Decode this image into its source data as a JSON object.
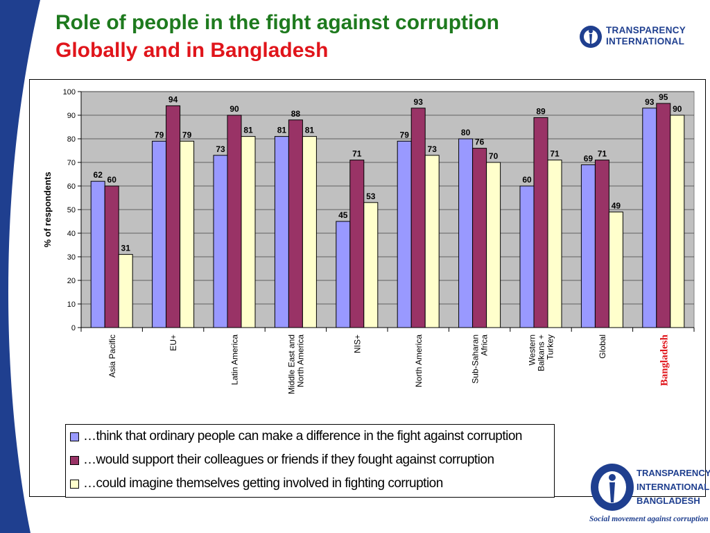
{
  "slide": {
    "title_line1": "Role of people in the fight against corruption",
    "title_line2": "Globally and in Bangladesh"
  },
  "logos": {
    "ti": [
      "TRANSPARENCY",
      "INTERNATIONAL"
    ],
    "tib": [
      "TRANSPARENCY",
      "INTERNATIONAL",
      "BANGLADESH"
    ],
    "tib_tagline": "Social movement against corruption"
  },
  "colors": {
    "series": [
      "#9999ff",
      "#993366",
      "#ffffcc"
    ],
    "plot_bg": "#c0c0c0",
    "title_green": "#1e7a1e",
    "title_red": "#e0151b",
    "highlight": "#e0151b"
  },
  "chart_data": {
    "type": "bar",
    "title": "",
    "ylabel": "% of respondents",
    "xlabel": "",
    "ylim": [
      0,
      100
    ],
    "yticks": [
      0,
      10,
      20,
      30,
      40,
      50,
      60,
      70,
      80,
      90,
      100
    ],
    "grid": true,
    "legend_position": "bottom",
    "categories": [
      "Asia Pacific",
      "EU+",
      "Latin America",
      "Middle East and North America",
      "NIS+",
      "North America",
      "Sub-Saharan Africa",
      "Western Balkans + Turkey",
      "Global",
      "Bangladesh"
    ],
    "category_label_lines": [
      [
        "Asia Pacific"
      ],
      [
        "EU+"
      ],
      [
        "Latin America"
      ],
      [
        "Middle East and",
        "North America"
      ],
      [
        "NIS+"
      ],
      [
        "North America"
      ],
      [
        "Sub-Saharan",
        "Africa"
      ],
      [
        "Western",
        "Balkans +",
        "Turkey"
      ],
      [
        "Global"
      ],
      [
        "Bangladesh"
      ]
    ],
    "highlight_category": "Bangladesh",
    "series": [
      {
        "name": "…think that ordinary people can make a difference in the fight against corruption",
        "values": [
          62,
          79,
          73,
          81,
          45,
          79,
          80,
          60,
          69,
          93
        ]
      },
      {
        "name": "…would support their colleagues or friends if they fought against corruption",
        "values": [
          60,
          94,
          90,
          88,
          71,
          93,
          76,
          89,
          71,
          95
        ]
      },
      {
        "name": "…could imagine themselves getting involved in fighting corruption",
        "values": [
          31,
          79,
          81,
          81,
          53,
          73,
          70,
          71,
          49,
          90
        ]
      }
    ]
  }
}
